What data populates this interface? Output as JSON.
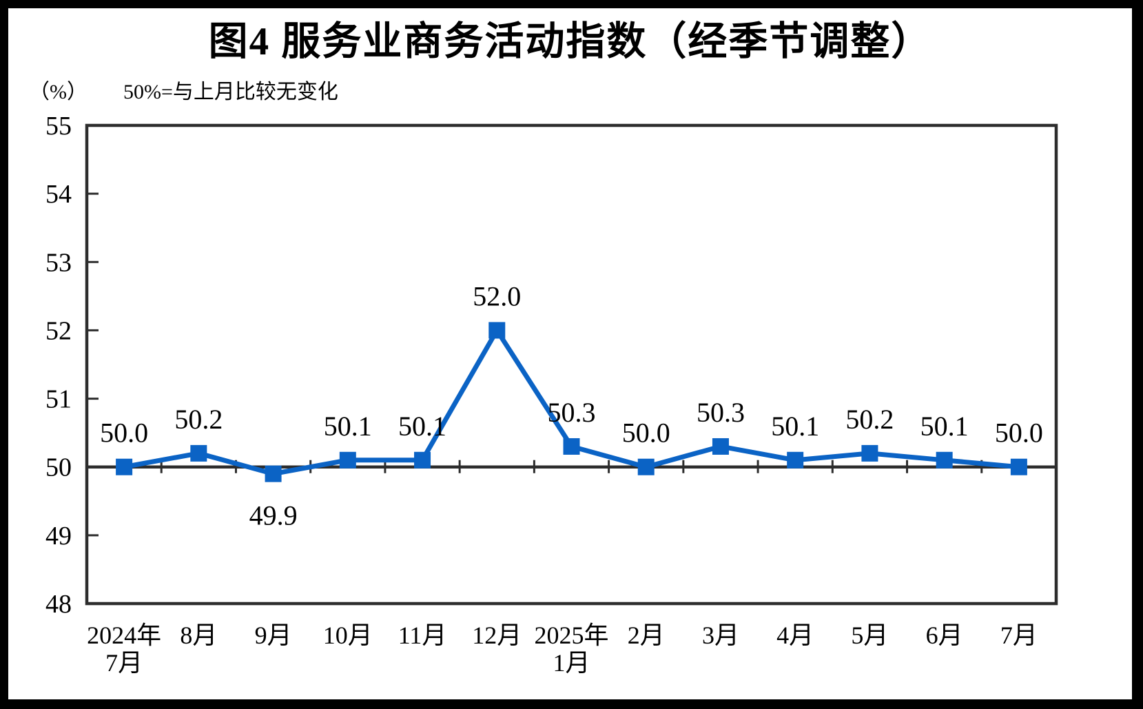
{
  "header": {
    "title": "图4 服务业商务活动指数（经季节调整）",
    "unit_label": "（%）",
    "note": "50%=与上月比较无变化"
  },
  "chart_data": {
    "type": "line",
    "title": "图4 服务业商务活动指数（经季节调整）",
    "subtitle": "50%=与上月比较无变化",
    "ylabel": "（%）",
    "xlabel": "",
    "categories": [
      [
        "2024年",
        "7月"
      ],
      [
        "8月"
      ],
      [
        "9月"
      ],
      [
        "10月"
      ],
      [
        "11月"
      ],
      [
        "12月"
      ],
      [
        "2025年",
        "1月"
      ],
      [
        "2月"
      ],
      [
        "3月"
      ],
      [
        "4月"
      ],
      [
        "5月"
      ],
      [
        "6月"
      ],
      [
        "7月"
      ]
    ],
    "values": [
      50.0,
      50.2,
      49.9,
      50.1,
      50.1,
      52.0,
      50.3,
      50.0,
      50.3,
      50.1,
      50.2,
      50.1,
      50.0
    ],
    "data_labels": [
      "50.0",
      "50.2",
      "49.9",
      "50.1",
      "50.1",
      "52.0",
      "50.3",
      "50.0",
      "50.3",
      "50.1",
      "50.2",
      "50.1",
      "50.0"
    ],
    "label_positions": [
      "above",
      "above",
      "below",
      "above",
      "above",
      "above",
      "above",
      "above",
      "above",
      "above",
      "above",
      "above",
      "above"
    ],
    "ylim": [
      48,
      55
    ],
    "yticks": [
      48,
      49,
      50,
      51,
      52,
      53,
      54,
      55
    ],
    "baseline_value": 50,
    "grid": "off",
    "legend": "none",
    "marker": "square",
    "colors": {
      "line": "#0B63C5",
      "marker": "#0B63C5",
      "axis": "#2D2D2D",
      "text": "#000000",
      "background": "#FFFFFF",
      "frame": "#000000"
    }
  }
}
